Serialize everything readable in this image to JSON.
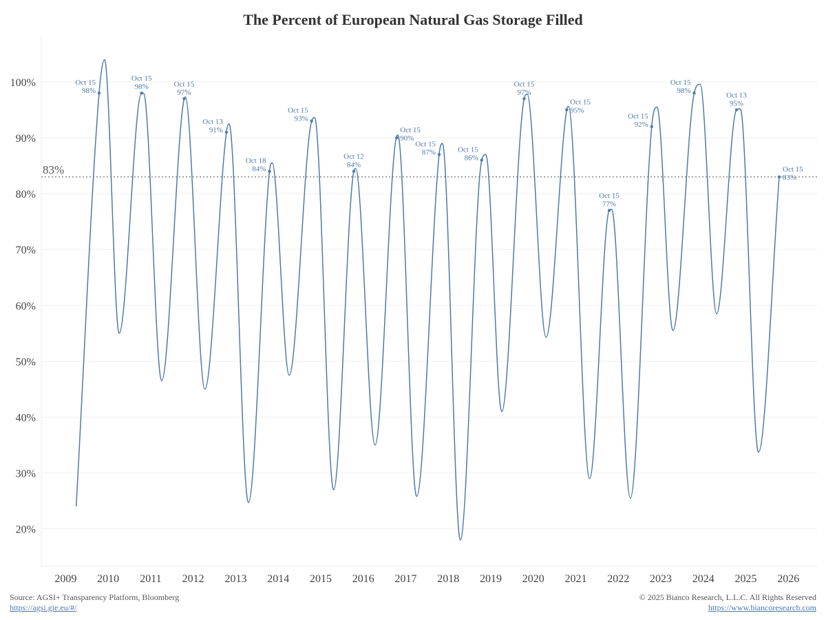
{
  "chart_data": {
    "type": "line",
    "title": "The Percent of European Natural Gas Storage Filled",
    "xlabel": "",
    "ylabel": "",
    "xlim": [
      "2008-06-05",
      "2026-09-05"
    ],
    "ylim": [
      13.3,
      108.5
    ],
    "x_ticks": [
      "2009",
      "2010",
      "2011",
      "2012",
      "2013",
      "2014",
      "2015",
      "2016",
      "2017",
      "2018",
      "2019",
      "2020",
      "2021",
      "2022",
      "2023",
      "2024",
      "2025",
      "2026"
    ],
    "y_ticks": [
      20,
      30,
      40,
      50,
      60,
      70,
      80,
      90,
      100
    ],
    "y_tick_labels": [
      "20%",
      "30%",
      "40%",
      "50%",
      "60%",
      "70%",
      "80%",
      "90%",
      "100%"
    ],
    "grid": "horizontal",
    "line_color": "#4e79a7",
    "reference_line": {
      "value": 83,
      "label": "83%",
      "style": "dotted",
      "color": "#888888"
    },
    "series": [
      {
        "points": [
          [
            "2009-04-01",
            24
          ],
          [
            "2009-10-15",
            98
          ],
          [
            "2009-12-01",
            104
          ],
          [
            "2010-04-05",
            55
          ],
          [
            "2010-10-15",
            98
          ],
          [
            "2010-11-01",
            98
          ],
          [
            "2011-04-05",
            46.5
          ],
          [
            "2011-10-15",
            97
          ],
          [
            "2011-10-25",
            97.3
          ],
          [
            "2012-04-10",
            45
          ],
          [
            "2012-10-13",
            91
          ],
          [
            "2012-11-05",
            92.5
          ],
          [
            "2013-04-20",
            24.7
          ],
          [
            "2013-10-18",
            84
          ],
          [
            "2013-11-10",
            85.5
          ],
          [
            "2014-04-05",
            47.5
          ],
          [
            "2014-10-15",
            93
          ],
          [
            "2014-11-10",
            93.6
          ],
          [
            "2015-04-22",
            27
          ],
          [
            "2015-10-12",
            84
          ],
          [
            "2015-10-28",
            84.5
          ],
          [
            "2016-04-12",
            35
          ],
          [
            "2016-10-15",
            90.3
          ],
          [
            "2016-10-25",
            90.5
          ],
          [
            "2017-04-05",
            25.8
          ],
          [
            "2017-10-15",
            87
          ],
          [
            "2017-11-12",
            89
          ],
          [
            "2018-04-15",
            18
          ],
          [
            "2018-10-15",
            86
          ],
          [
            "2018-11-20",
            87
          ],
          [
            "2019-04-05",
            41
          ],
          [
            "2019-10-15",
            97
          ],
          [
            "2019-11-10",
            97.8
          ],
          [
            "2020-04-20",
            54.3
          ],
          [
            "2020-10-15",
            95
          ],
          [
            "2020-10-30",
            95.6
          ],
          [
            "2021-04-30",
            29
          ],
          [
            "2021-10-15",
            77
          ],
          [
            "2021-11-05",
            77.2
          ],
          [
            "2022-04-15",
            25.5
          ],
          [
            "2022-10-15",
            92
          ],
          [
            "2022-11-30",
            95.5
          ],
          [
            "2023-04-15",
            55.5
          ],
          [
            "2023-10-15",
            98
          ],
          [
            "2023-12-05",
            99.6
          ],
          [
            "2024-04-25",
            58.5
          ],
          [
            "2024-10-13",
            95
          ],
          [
            "2024-11-15",
            95.2
          ],
          [
            "2025-04-20",
            33.7
          ],
          [
            "2025-10-15",
            83
          ]
        ]
      }
    ],
    "annotations": [
      {
        "date": "2009-10-15",
        "value": 98,
        "label": "Oct 15",
        "text": "98%",
        "position": "left"
      },
      {
        "date": "2010-10-15",
        "value": 98,
        "label": "Oct 15",
        "text": "98%",
        "position": "above"
      },
      {
        "date": "2011-10-15",
        "value": 97,
        "label": "Oct 15",
        "text": "97%",
        "position": "above"
      },
      {
        "date": "2012-10-13",
        "value": 91,
        "label": "Oct 13",
        "text": "91%",
        "position": "left"
      },
      {
        "date": "2013-10-18",
        "value": 84,
        "label": "Oct 18",
        "text": "84%",
        "position": "left"
      },
      {
        "date": "2014-10-15",
        "value": 93,
        "label": "Oct 15",
        "text": "93%",
        "position": "left"
      },
      {
        "date": "2015-10-12",
        "value": 84,
        "label": "Oct 12",
        "text": "84%",
        "position": "above"
      },
      {
        "date": "2016-10-15",
        "value": 90,
        "label": "Oct 15",
        "text": "90%",
        "position": "right"
      },
      {
        "date": "2017-10-15",
        "value": 87,
        "label": "Oct 15",
        "text": "87%",
        "position": "left"
      },
      {
        "date": "2018-10-15",
        "value": 86,
        "label": "Oct 15",
        "text": "86%",
        "position": "left"
      },
      {
        "date": "2019-10-15",
        "value": 97,
        "label": "Oct 15",
        "text": "97%",
        "position": "above"
      },
      {
        "date": "2020-10-15",
        "value": 95,
        "label": "Oct 15",
        "text": "95%",
        "position": "right"
      },
      {
        "date": "2021-10-15",
        "value": 77,
        "label": "Oct 15",
        "text": "77%",
        "position": "above"
      },
      {
        "date": "2022-10-15",
        "value": 92,
        "label": "Oct 15",
        "text": "92%",
        "position": "left"
      },
      {
        "date": "2023-10-15",
        "value": 98,
        "label": "Oct 15",
        "text": "98%",
        "position": "left"
      },
      {
        "date": "2024-10-13",
        "value": 95,
        "label": "Oct 13",
        "text": "95%",
        "position": "above"
      },
      {
        "date": "2025-10-15",
        "value": 83,
        "label": "Oct 15",
        "text": "83%",
        "position": "right"
      }
    ]
  },
  "footer": {
    "source": "Source: AGSI+ Transparency Platform, Bloomberg",
    "source_link": "https://agsi.gie.eu/#/",
    "copyright": "© 2025 Bianco Research, L.L.C. All Rights Reserved",
    "company_link": "https://www.biancoresearch.com"
  }
}
